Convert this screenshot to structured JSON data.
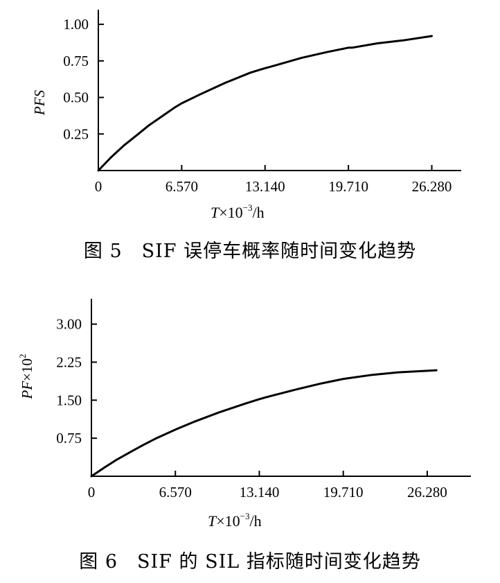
{
  "chart_data": [
    {
      "type": "line",
      "ylabel": "PFS",
      "xlabel": "T×10⁻³/h",
      "xlabel_parts": {
        "var": "T",
        "mid": "×10",
        "exp": "−3",
        "unit": "/h"
      },
      "caption": "图 5　SIF 误停车概率随时间变化趋势",
      "xlim": [
        0,
        28600
      ],
      "ylim": [
        0,
        1.1
      ],
      "x_ticks": [
        0,
        6570,
        13140,
        19710,
        26280
      ],
      "x_tick_labels": [
        "0",
        "6.570",
        "13.140",
        "19.710",
        "26.280"
      ],
      "y_ticks": [
        0.25,
        0.5,
        0.75,
        1.0
      ],
      "y_tick_labels": [
        "0.25",
        "0.50",
        "0.75",
        "1.00"
      ],
      "grid": false,
      "series": [
        {
          "x": [
            0,
            1000,
            2000,
            3000,
            4000,
            5000,
            6000,
            6570,
            8000,
            9000,
            10000,
            12000,
            13140,
            14000,
            16000,
            18000,
            19710,
            20000,
            22000,
            24000,
            26280
          ],
          "y": [
            0,
            0.09,
            0.17,
            0.24,
            0.31,
            0.37,
            0.43,
            0.46,
            0.52,
            0.56,
            0.6,
            0.67,
            0.7,
            0.72,
            0.77,
            0.81,
            0.84,
            0.84,
            0.87,
            0.89,
            0.92
          ]
        }
      ]
    },
    {
      "type": "line",
      "ylabel": "PF×10²",
      "ylabel_parts": {
        "var": "PF",
        "mid": "×10",
        "exp": "2"
      },
      "xlabel": "T×10⁻³/h",
      "xlabel_parts": {
        "var": "T",
        "mid": "×10",
        "exp": "−3",
        "unit": "/h"
      },
      "caption": "图 6　SIF 的 SIL 指标随时间变化趋势",
      "xlim": [
        0,
        29700
      ],
      "ylim": [
        0,
        3.5
      ],
      "x_ticks": [
        0,
        6570,
        13140,
        19710,
        26280
      ],
      "x_tick_labels": [
        "0",
        "6.570",
        "13.140",
        "19.710",
        "26.280"
      ],
      "y_ticks": [
        0.75,
        1.5,
        2.25,
        3.0
      ],
      "y_tick_labels": [
        "0.75",
        "1.50",
        "2.25",
        "3.00"
      ],
      "grid": false,
      "series": [
        {
          "x": [
            0,
            1000,
            2000,
            3000,
            4000,
            5000,
            6570,
            8000,
            10000,
            12000,
            13140,
            14000,
            16000,
            18000,
            19710,
            22000,
            24000,
            26280,
            27000
          ],
          "y": [
            0,
            0.17,
            0.33,
            0.47,
            0.61,
            0.74,
            0.92,
            1.07,
            1.26,
            1.43,
            1.52,
            1.58,
            1.71,
            1.83,
            1.92,
            2.0,
            2.05,
            2.08,
            2.09
          ]
        }
      ]
    }
  ]
}
